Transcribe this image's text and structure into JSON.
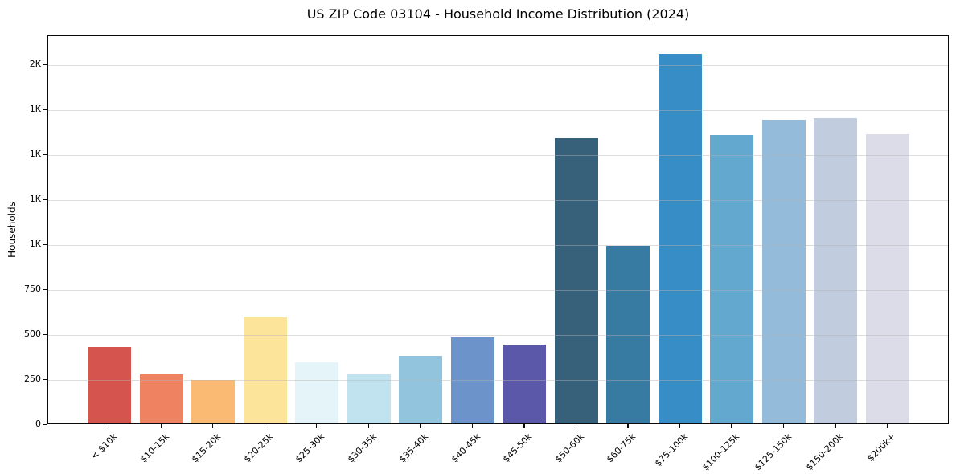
{
  "chart_data": {
    "type": "bar",
    "title": "US ZIP Code 03104 - Household Income Distribution (2024)",
    "xlabel": "",
    "ylabel": "Households",
    "categories": [
      "< $10k",
      "$10-15k",
      "$15-20k",
      "$20-25k",
      "$25-30k",
      "$30-35k",
      "$35-40k",
      "$40-45k",
      "$45-50k",
      "$50-60k",
      "$60-75k",
      "$75-100k",
      "$100-125k",
      "$125-150k",
      "$150-200k",
      "$200k+"
    ],
    "values": [
      425,
      274,
      242,
      588,
      338,
      273,
      377,
      478,
      438,
      1586,
      988,
      2052,
      1600,
      1686,
      1695,
      1605
    ],
    "bar_colors": [
      "#d5544e",
      "#ef8261",
      "#fbba73",
      "#fde49b",
      "#e5f4f8",
      "#c1e3ef",
      "#93c4de",
      "#6c94ca",
      "#5b57a9",
      "#37607a",
      "#377ba3",
      "#378ec6",
      "#62a8cf",
      "#94bbda",
      "#c1ccdf",
      "#dbdce8"
    ],
    "ylim": [
      0,
      2160
    ],
    "yticks": [
      {
        "value": 0,
        "label": "0"
      },
      {
        "value": 250,
        "label": "250"
      },
      {
        "value": 500,
        "label": "500"
      },
      {
        "value": 750,
        "label": "750"
      },
      {
        "value": 1000,
        "label": "1K"
      },
      {
        "value": 1250,
        "label": "1K"
      },
      {
        "value": 1500,
        "label": "1K"
      },
      {
        "value": 1750,
        "label": "1K"
      },
      {
        "value": 2000,
        "label": "2K"
      }
    ],
    "grid": "horizontal",
    "legend": "none",
    "colors": {
      "background": "#ffffff",
      "gridline": "rgba(180,180,180,0.45)",
      "spine": "#0a0a0a",
      "text": "#000000"
    }
  }
}
